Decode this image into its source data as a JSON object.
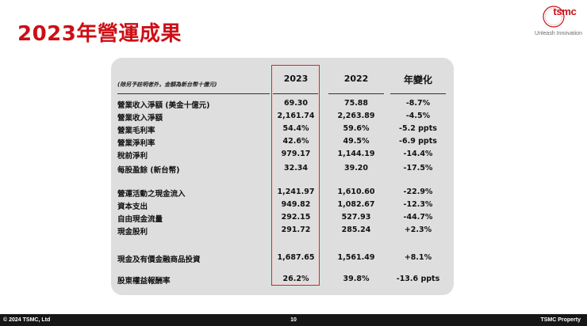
{
  "header": {
    "title": "2023年營運成果",
    "logo_text": "tsmc",
    "tagline": "Unleash Innovation"
  },
  "table": {
    "note": "(除另予註明者外，金額為新台幣十億元)",
    "columns": [
      "2023",
      "2022",
      "年變化"
    ],
    "rows": [
      {
        "label": "營業收入淨額 (美金十億元)",
        "v2023": "69.30",
        "v2022": "75.88",
        "yoy": "-8.7%"
      },
      {
        "label": "營業收入淨額",
        "v2023": "2,161.74",
        "v2022": "2,263.89",
        "yoy": "-4.5%"
      },
      {
        "label": "營業毛利率",
        "v2023": "54.4%",
        "v2022": "59.6%",
        "yoy": "-5.2 ppts"
      },
      {
        "label": "營業淨利率",
        "v2023": "42.6%",
        "v2022": "49.5%",
        "yoy": "-6.9 ppts"
      },
      {
        "label": "稅前淨利",
        "v2023": "979.17",
        "v2022": "1,144.19",
        "yoy": "-14.4%"
      },
      {
        "label": "每股盈餘 (新台幣)",
        "v2023": "32.34",
        "v2022": "39.20",
        "yoy": "-17.5%"
      },
      {
        "label": "營運活動之現金流入",
        "v2023": "1,241.97",
        "v2022": "1,610.60",
        "yoy": "-22.9%"
      },
      {
        "label": "資本支出",
        "v2023": "949.82",
        "v2022": "1,082.67",
        "yoy": "-12.3%"
      },
      {
        "label": "自由現金流量",
        "v2023": "292.15",
        "v2022": "527.93",
        "yoy": "-44.7%"
      },
      {
        "label": "現金股利",
        "v2023": "291.72",
        "v2022": "285.24",
        "yoy": "+2.3%"
      },
      {
        "label": "現金及有價金融商品投資",
        "v2023": "1,687.65",
        "v2022": "1,561.49",
        "yoy": "+8.1%"
      },
      {
        "label": "股東權益報酬率",
        "v2023": "26.2%",
        "v2022": "39.8%",
        "yoy": "-13.6 ppts"
      }
    ]
  },
  "footer": {
    "copyright": "© 2024 TSMC, Ltd",
    "page": "10",
    "property": "TSMC Property"
  },
  "colors": {
    "accent": "#cc0f16",
    "highlight_border": "#e51f23",
    "panel": "#dedede",
    "footer_bg": "#161616"
  }
}
